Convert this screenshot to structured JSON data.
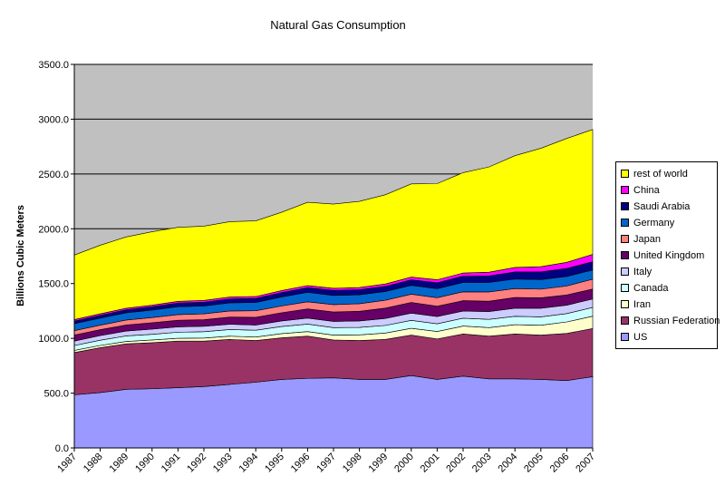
{
  "chart_data": {
    "type": "area",
    "stacked": true,
    "title": "Natural Gas Consumption",
    "xlabel": "",
    "ylabel": "Billions Cubic Meters",
    "ylim": [
      0,
      3500
    ],
    "yticks": [
      "0.0",
      "500.0",
      "1000.0",
      "1500.0",
      "2000.0",
      "2500.0",
      "3000.0",
      "3500.0"
    ],
    "categories": [
      "1987",
      "1988",
      "1989",
      "1990",
      "1991",
      "1992",
      "1993",
      "1994",
      "1995",
      "1996",
      "1997",
      "1998",
      "1999",
      "2000",
      "2001",
      "2002",
      "2003",
      "2004",
      "2005",
      "2006",
      "2007"
    ],
    "grid": true,
    "legend_position": "right",
    "plot_background": "#c0c0c0",
    "series": [
      {
        "name": "US",
        "color": "#9999ff",
        "values": [
          485,
          505,
          535,
          540,
          550,
          560,
          580,
          600,
          625,
          635,
          640,
          625,
          625,
          660,
          625,
          655,
          630,
          630,
          625,
          615,
          650
        ]
      },
      {
        "name": "Russian Federation",
        "color": "#993366",
        "values": [
          385,
          410,
          415,
          420,
          425,
          415,
          410,
          380,
          380,
          385,
          345,
          355,
          365,
          370,
          370,
          385,
          390,
          410,
          405,
          430,
          440
        ]
      },
      {
        "name": "Iran",
        "color": "#ffffcc",
        "values": [
          20,
          20,
          22,
          25,
          26,
          28,
          30,
          32,
          38,
          42,
          45,
          52,
          58,
          62,
          68,
          72,
          78,
          85,
          90,
          105,
          112
        ]
      },
      {
        "name": "Canada",
        "color": "#ccffff",
        "values": [
          45,
          48,
          50,
          52,
          55,
          58,
          60,
          62,
          65,
          68,
          68,
          68,
          70,
          72,
          70,
          72,
          75,
          76,
          76,
          76,
          80
        ]
      },
      {
        "name": "Italy",
        "color": "#ccccff",
        "values": [
          40,
          42,
          45,
          47,
          49,
          49,
          49,
          48,
          51,
          55,
          57,
          59,
          64,
          66,
          66,
          65,
          72,
          74,
          79,
          77,
          77
        ]
      },
      {
        "name": "United Kingdom",
        "color": "#660066",
        "values": [
          55,
          54,
          55,
          58,
          60,
          60,
          65,
          70,
          75,
          84,
          86,
          88,
          94,
          98,
          94,
          95,
          94,
          98,
          95,
          93,
          91
        ]
      },
      {
        "name": "Japan",
        "color": "#ff8080",
        "values": [
          40,
          42,
          45,
          48,
          52,
          54,
          56,
          60,
          62,
          65,
          67,
          69,
          72,
          75,
          78,
          81,
          85,
          82,
          79,
          82,
          90
        ]
      },
      {
        "name": "Germany",
        "color": "#0066cc",
        "values": [
          65,
          64,
          66,
          68,
          72,
          71,
          74,
          75,
          82,
          86,
          84,
          82,
          80,
          81,
          83,
          85,
          86,
          86,
          87,
          87,
          84
        ]
      },
      {
        "name": "Saudi Arabia",
        "color": "#000080",
        "values": [
          22,
          25,
          27,
          30,
          33,
          35,
          36,
          38,
          40,
          43,
          46,
          46,
          46,
          50,
          54,
          57,
          60,
          65,
          71,
          73,
          75
        ]
      },
      {
        "name": "China",
        "color": "#ff00ff",
        "values": [
          14,
          14,
          15,
          15,
          16,
          16,
          17,
          17,
          18,
          19,
          19,
          20,
          22,
          25,
          27,
          29,
          34,
          41,
          47,
          56,
          67
        ]
      },
      {
        "name": "rest of world",
        "color": "#ffff00",
        "values": [
          589,
          626,
          650,
          670,
          675,
          678,
          688,
          690,
          715,
          760,
          768,
          786,
          814,
          850,
          877,
          916,
          960,
          1020,
          1080,
          1130,
          1140
        ]
      }
    ]
  }
}
